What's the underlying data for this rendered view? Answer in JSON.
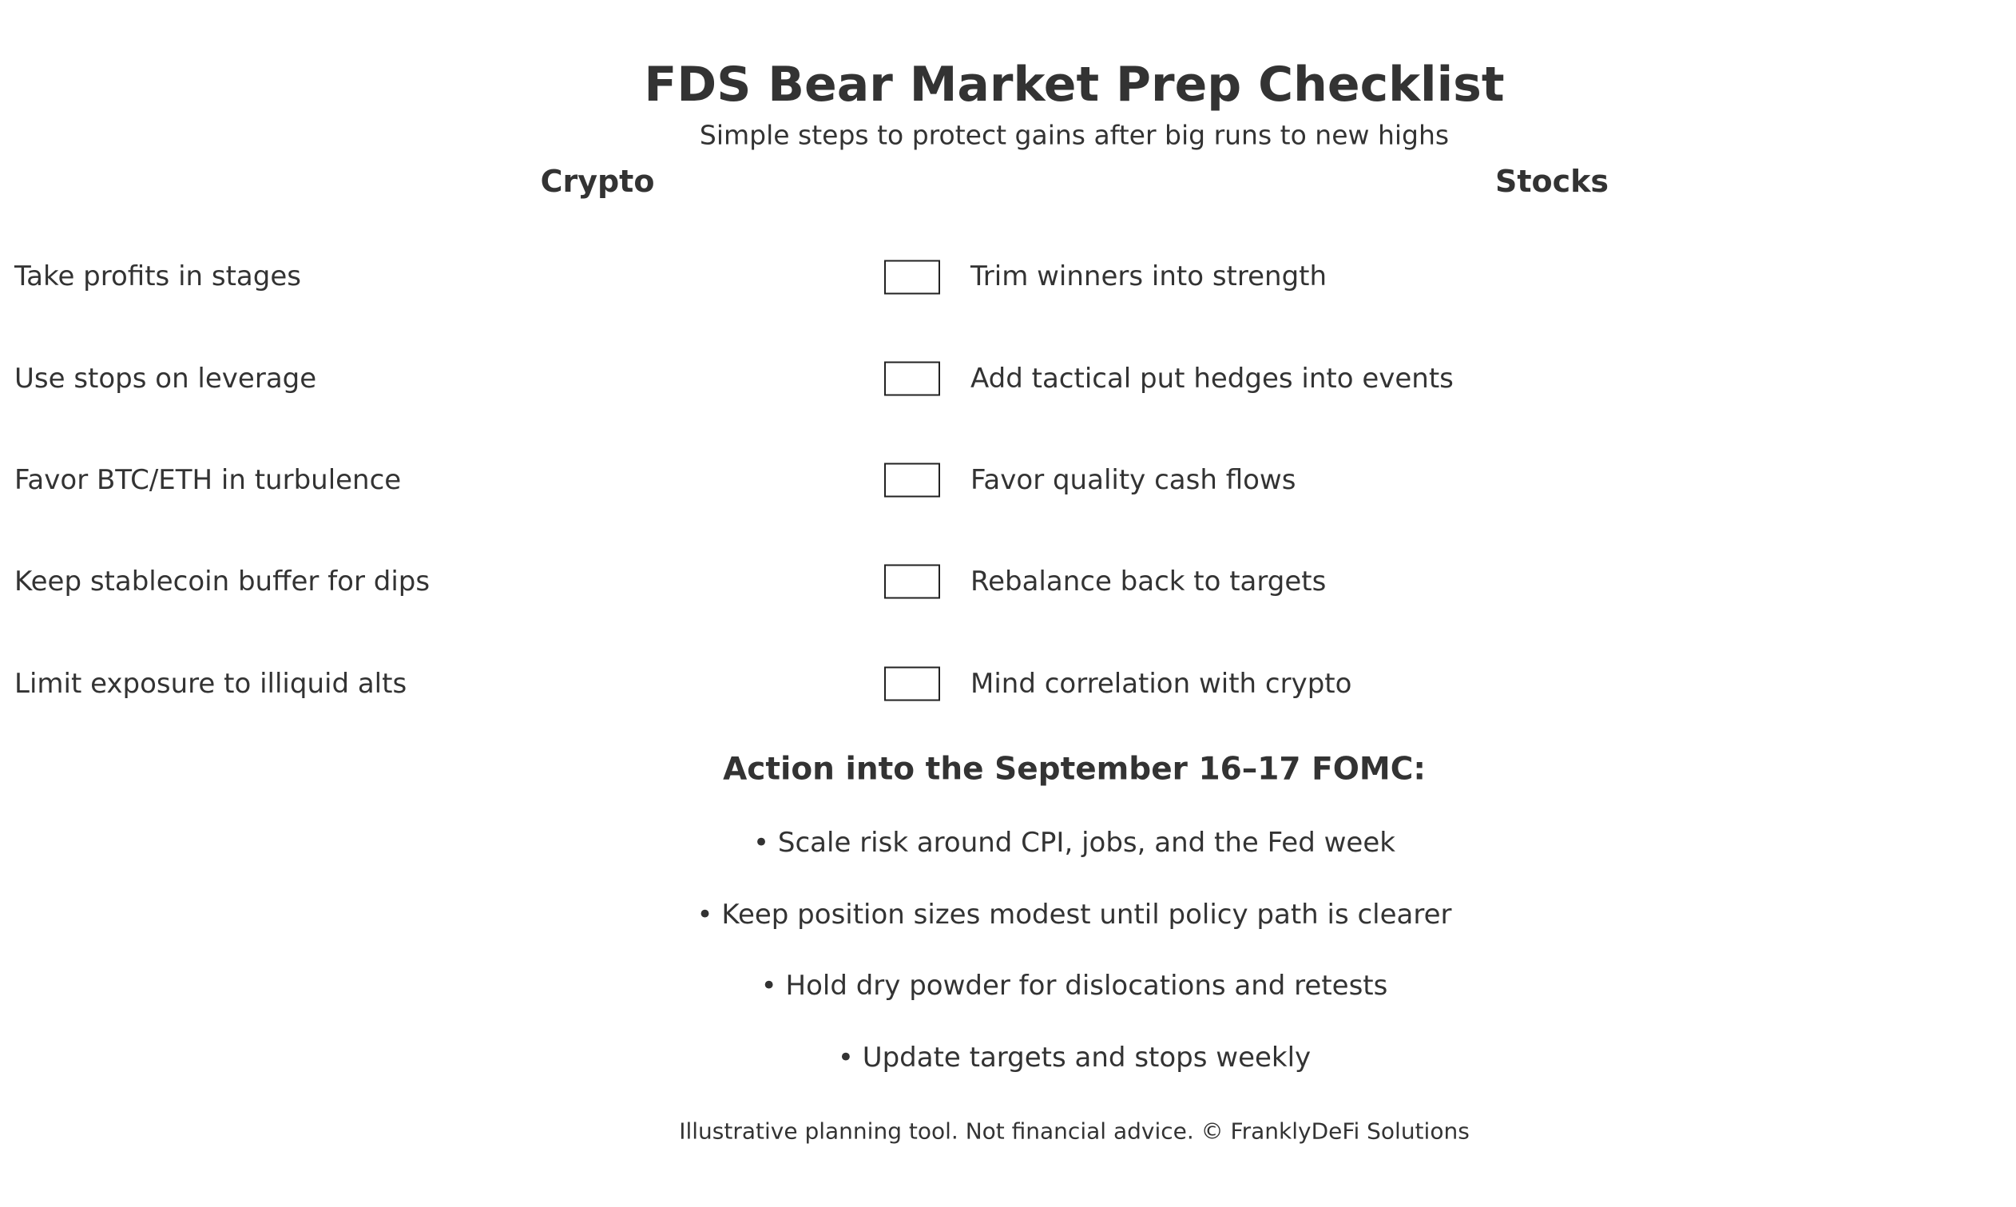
{
  "title": "FDS Bear Market Prep Checklist",
  "subtitle": "Simple steps to protect gains after big runs to new highs",
  "columns": {
    "crypto": "Crypto",
    "stocks": "Stocks"
  },
  "crypto_items": [
    "Take profits in stages",
    "Use stops on leverage",
    "Favor BTC/ETH in turbulence",
    "Keep stablecoin buffer for dips",
    "Limit exposure to illiquid alts"
  ],
  "stocks_items": [
    {
      "label": "Trim winners into strength",
      "checked": false
    },
    {
      "label": "Add tactical put hedges into events",
      "checked": false
    },
    {
      "label": "Favor quality cash flows",
      "checked": false
    },
    {
      "label": "Rebalance back to targets",
      "checked": false
    },
    {
      "label": "Mind correlation with crypto",
      "checked": false
    }
  ],
  "action": {
    "heading": "Action into the September 16–17 FOMC:",
    "bullets": [
      "• Scale risk around CPI, jobs, and the Fed week",
      "• Keep position sizes modest until policy path is clearer",
      "• Hold dry powder for dislocations and retests",
      "• Update targets and stops weekly"
    ]
  },
  "footer": "Illustrative planning tool. Not financial advice. © FranklyDeFi Solutions"
}
